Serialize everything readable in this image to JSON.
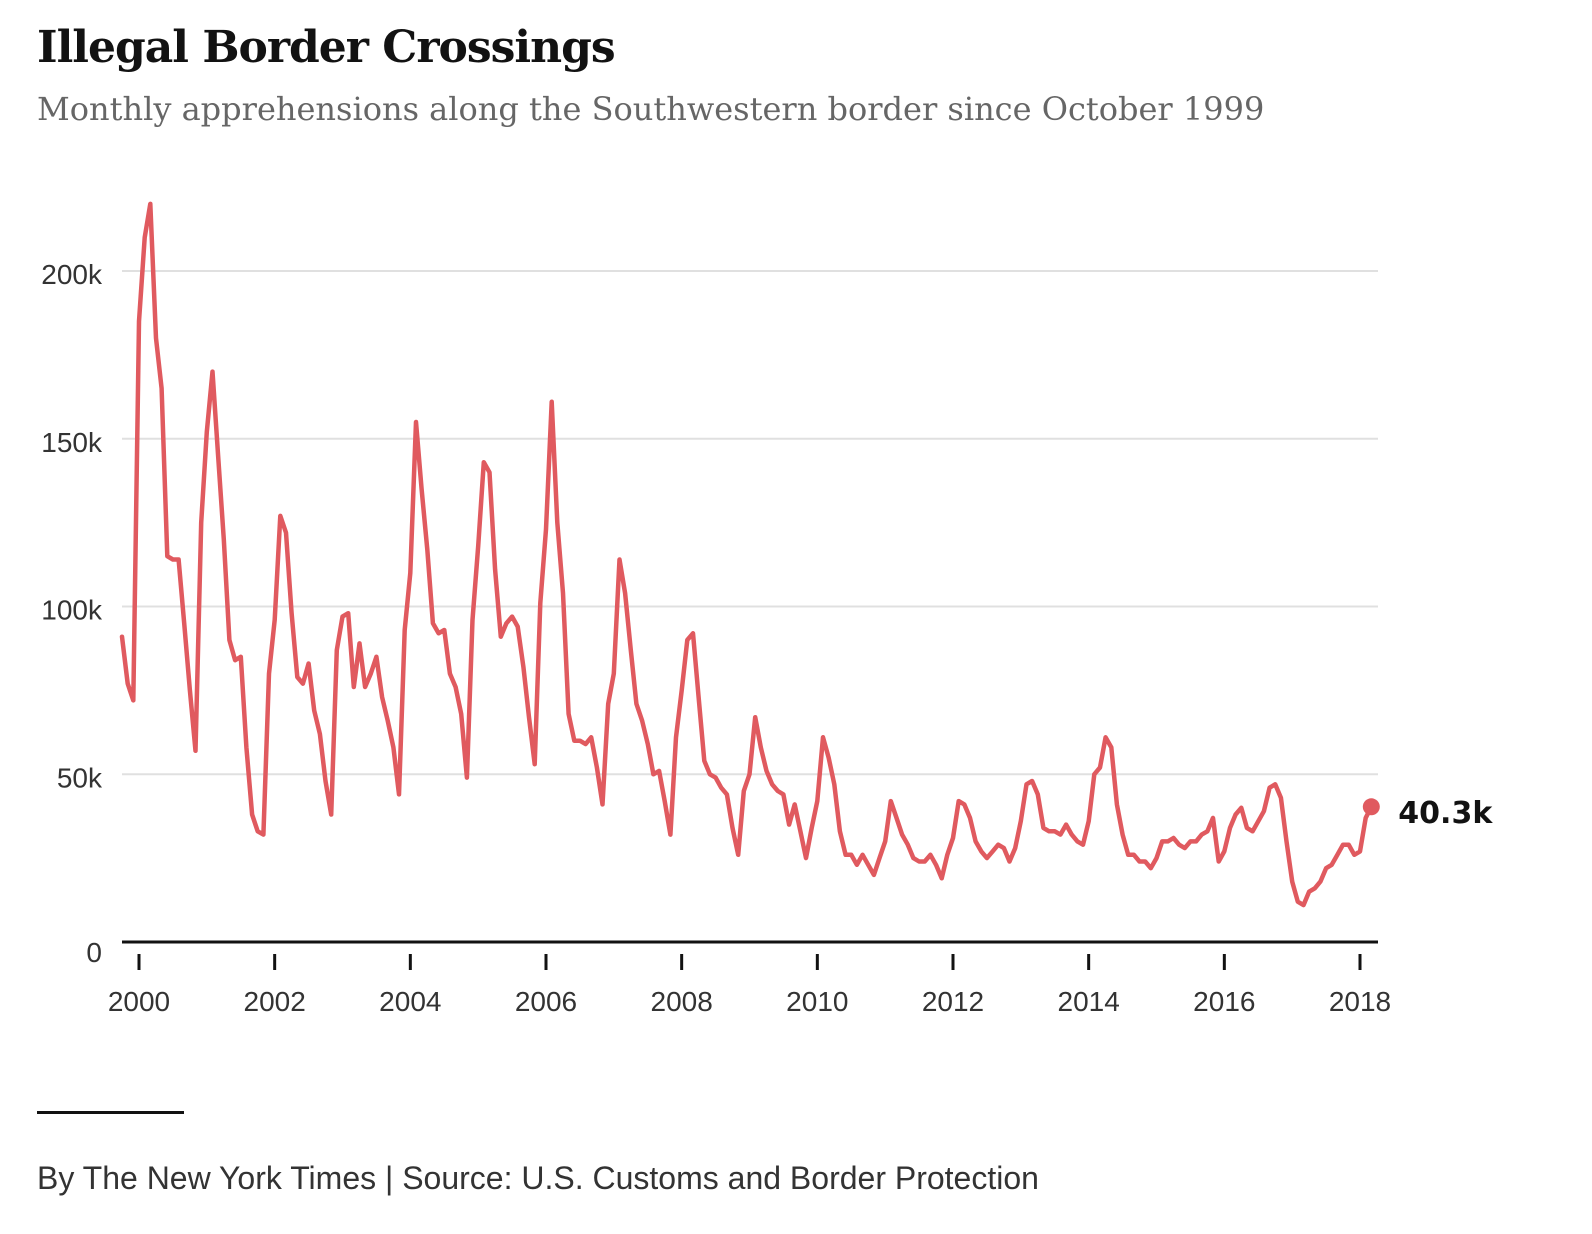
{
  "title": "Illegal Border Crossings",
  "subtitle": "Monthly apprehensions along the Southwestern border since October 1999",
  "credit": "By The New York Times | Source: U.S. Customs and Border Protection",
  "colors": {
    "line": "#e05a5f",
    "grid": "#e0e0e0",
    "axis": "#121212"
  },
  "chart_data": {
    "type": "line",
    "title": "Illegal Border Crossings",
    "subtitle": "Monthly apprehensions along the Southwestern border since October 1999",
    "xlabel": "",
    "ylabel": "",
    "ylim": [
      0,
      220000
    ],
    "grid": true,
    "yticks": [
      0,
      50000,
      100000,
      150000,
      200000
    ],
    "ytick_labels": [
      "0",
      "50k",
      "100k",
      "150k",
      "200k"
    ],
    "xticks": [
      2000,
      2002,
      2004,
      2006,
      2008,
      2010,
      2012,
      2014,
      2016,
      2018
    ],
    "xtick_labels": [
      "2000",
      "2002",
      "2004",
      "2006",
      "2008",
      "2010",
      "2012",
      "2014",
      "2016",
      "2018"
    ],
    "end_label": "40.3k",
    "series": [
      {
        "start": "1999-10",
        "frequency": "monthly",
        "values": [
          91000,
          77000,
          72000,
          185000,
          210000,
          220000,
          180000,
          165000,
          115000,
          114000,
          114000,
          95000,
          75000,
          57000,
          125000,
          152000,
          170000,
          145000,
          120000,
          90000,
          84000,
          85000,
          58000,
          38000,
          33000,
          32000,
          80000,
          96000,
          127000,
          122000,
          98000,
          79000,
          77000,
          83000,
          69000,
          62000,
          48000,
          38000,
          87000,
          97000,
          98000,
          76000,
          89000,
          76000,
          80000,
          85000,
          73000,
          66000,
          58000,
          44000,
          93000,
          110000,
          155000,
          135000,
          117000,
          95000,
          92000,
          93000,
          80000,
          76000,
          68000,
          49000,
          96000,
          118000,
          143000,
          140000,
          111000,
          91000,
          95000,
          97000,
          94000,
          82000,
          67000,
          53000,
          101000,
          123000,
          161000,
          125000,
          104000,
          68000,
          60000,
          60000,
          59000,
          61000,
          52000,
          41000,
          71000,
          80000,
          114000,
          104000,
          87000,
          71000,
          66000,
          59000,
          50000,
          51000,
          42000,
          32000,
          61000,
          75000,
          90000,
          92000,
          73000,
          54000,
          50000,
          49000,
          46000,
          44000,
          34000,
          26000,
          45000,
          50000,
          67000,
          58000,
          51000,
          47000,
          45000,
          44000,
          35000,
          41000,
          33000,
          25000,
          34000,
          42000,
          61000,
          55000,
          47000,
          33000,
          26000,
          26000,
          23000,
          26000,
          23000,
          20000,
          25000,
          30000,
          42000,
          37000,
          32000,
          29000,
          25000,
          24000,
          24000,
          26000,
          23000,
          19000,
          26000,
          31000,
          42000,
          41000,
          37000,
          30000,
          27000,
          25000,
          27000,
          29000,
          28000,
          24000,
          28000,
          36000,
          47000,
          48000,
          44000,
          34000,
          33000,
          33000,
          32000,
          35000,
          32000,
          30000,
          29000,
          36000,
          50000,
          52000,
          61000,
          58000,
          41000,
          32000,
          26000,
          26000,
          24000,
          24000,
          22000,
          25000,
          30000,
          30000,
          31000,
          29000,
          28000,
          30000,
          30000,
          32000,
          33000,
          37000,
          24000,
          27000,
          34000,
          38000,
          40000,
          34000,
          33000,
          36000,
          39000,
          46000,
          47000,
          43000,
          30000,
          18000,
          12000,
          11000,
          15000,
          16000,
          18000,
          22000,
          23000,
          26000,
          29000,
          29000,
          26000,
          27000,
          37000,
          40300
        ]
      }
    ]
  }
}
